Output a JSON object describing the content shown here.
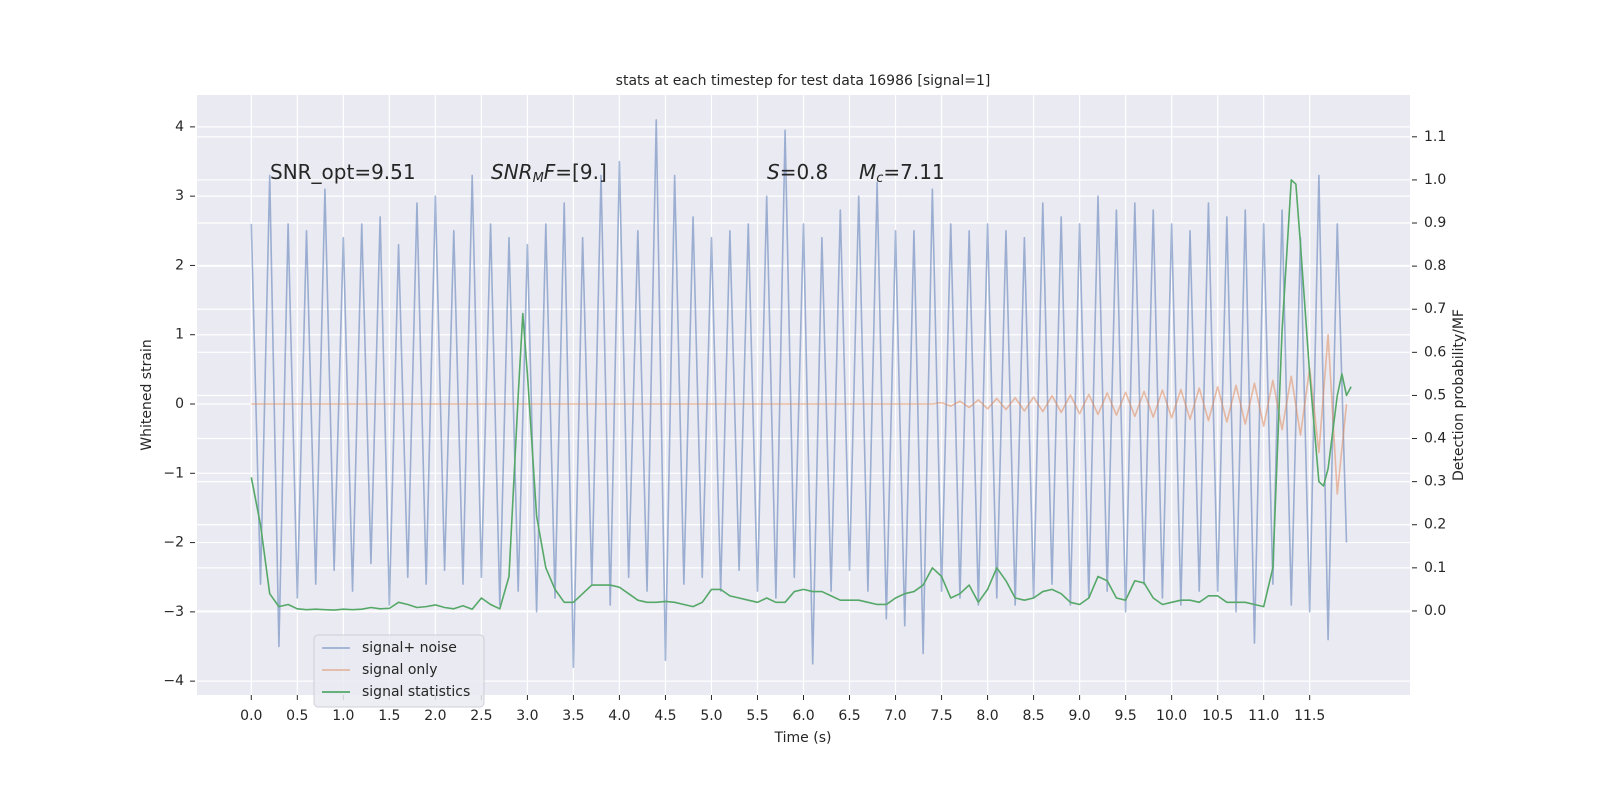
{
  "chart_data": {
    "type": "line",
    "title": "stats at each timestep for test data 16986 [signal=1]",
    "xlabel": "Time (s)",
    "ylabel": "Whitened strain",
    "y2label": "Detection probability/MF",
    "grid": true,
    "legend": "lower left",
    "x": [
      0,
      0.1,
      0.2,
      0.3,
      0.4,
      0.5,
      0.6,
      0.7,
      0.8,
      0.9,
      1.0,
      1.1,
      1.2,
      1.3,
      1.4,
      1.5,
      1.6,
      1.7,
      1.8,
      1.9,
      2.0,
      2.1,
      2.2,
      2.3,
      2.4,
      2.5,
      2.6,
      2.7,
      2.8,
      2.9,
      3.0,
      3.1,
      3.2,
      3.3,
      3.4,
      3.5,
      3.6,
      3.7,
      3.8,
      3.9,
      4.0,
      4.1,
      4.2,
      4.3,
      4.4,
      4.5,
      4.6,
      4.7,
      4.8,
      4.9,
      5.0,
      5.1,
      5.2,
      5.3,
      5.4,
      5.5,
      5.6,
      5.7,
      5.8,
      5.9,
      6.0,
      6.1,
      6.2,
      6.3,
      6.4,
      6.5,
      6.6,
      6.7,
      6.8,
      6.9,
      7.0,
      7.1,
      7.2,
      7.3,
      7.4,
      7.5,
      7.6,
      7.7,
      7.8,
      7.9,
      8.0,
      8.1,
      8.2,
      8.3,
      8.4,
      8.5,
      8.6,
      8.7,
      8.8,
      8.9,
      9.0,
      9.1,
      9.2,
      9.3,
      9.4,
      9.5,
      9.6,
      9.7,
      9.8,
      9.9,
      10.0,
      10.1,
      10.2,
      10.3,
      10.4,
      10.5,
      10.6,
      10.7,
      10.8,
      10.9,
      11.0,
      11.1,
      11.2,
      11.3,
      11.4,
      11.5,
      11.6,
      11.7,
      11.8,
      11.9
    ],
    "series": [
      {
        "name": "signal+ noise",
        "color": "#4c72b0",
        "opacity": 0.5,
        "values": [
          2.6,
          -2.6,
          3.3,
          -3.5,
          2.6,
          -2.8,
          2.5,
          -2.6,
          3.1,
          -2.4,
          2.4,
          -2.7,
          2.6,
          -2.3,
          2.7,
          -2.9,
          2.3,
          -2.5,
          2.9,
          -2.6,
          3.0,
          -2.4,
          2.5,
          -2.6,
          3.3,
          -2.5,
          2.6,
          -2.9,
          2.4,
          -2.7,
          2.3,
          -3.0,
          2.6,
          -2.8,
          2.9,
          -3.8,
          2.4,
          -2.6,
          3.3,
          -2.9,
          3.5,
          -2.5,
          2.5,
          -2.7,
          4.1,
          -3.7,
          3.3,
          -2.6,
          2.7,
          -2.5,
          2.4,
          -2.7,
          2.5,
          -2.4,
          2.6,
          -2.7,
          3.0,
          -2.8,
          3.95,
          -2.5,
          2.6,
          -3.75,
          2.4,
          -2.7,
          2.8,
          -2.4,
          3.0,
          -2.7,
          3.2,
          -3.1,
          2.5,
          -3.2,
          2.5,
          -3.6,
          3.1,
          -2.7,
          2.6,
          -2.8,
          2.5,
          -2.9,
          2.6,
          -2.8,
          2.5,
          -2.9,
          2.4,
          -2.8,
          2.9,
          -2.6,
          2.7,
          -2.9,
          2.6,
          -2.8,
          3.0,
          -2.7,
          2.8,
          -3.0,
          2.9,
          -2.6,
          2.8,
          -2.8,
          2.6,
          -2.9,
          2.5,
          -2.7,
          2.9,
          -2.7,
          2.7,
          -3.0,
          2.8,
          -3.45,
          2.6,
          -2.6,
          2.8,
          -2.9,
          2.4,
          -3.0,
          3.3,
          -3.4,
          2.6,
          -2.0
        ]
      },
      {
        "name": "signal only",
        "color": "#dd8452",
        "opacity": 0.5,
        "values": [
          0,
          0,
          0,
          0,
          0,
          0,
          0,
          0,
          0,
          0,
          0,
          0,
          0,
          0,
          0,
          0,
          0,
          0,
          0,
          0,
          0,
          0,
          0,
          0,
          0,
          0,
          0,
          0,
          0,
          0,
          0,
          0,
          0,
          0,
          0,
          0,
          0,
          0,
          0,
          0,
          0,
          0,
          0,
          0,
          0,
          0,
          0,
          0,
          0,
          0,
          0,
          0,
          0,
          0,
          0,
          0,
          0,
          0,
          0,
          0,
          0,
          0,
          0,
          0,
          0,
          0,
          0,
          0,
          0,
          0,
          0,
          0,
          0,
          0,
          0,
          0.02,
          -0.03,
          0.04,
          -0.05,
          0.06,
          -0.07,
          0.08,
          -0.08,
          0.09,
          -0.1,
          0.1,
          -0.11,
          0.12,
          -0.12,
          0.13,
          -0.14,
          0.14,
          -0.15,
          0.16,
          -0.16,
          0.17,
          -0.18,
          0.18,
          -0.19,
          0.2,
          -0.2,
          0.21,
          -0.22,
          0.23,
          -0.24,
          0.25,
          -0.26,
          0.27,
          -0.29,
          0.3,
          -0.32,
          0.34,
          -0.37,
          0.4,
          -0.45,
          0.52,
          -0.7,
          1.0,
          -1.3,
          0
        ]
      },
      {
        "name": "signal statistics",
        "color": "#55a868",
        "axis": "y2",
        "x": [
          0,
          0.1,
          0.2,
          0.3,
          0.4,
          0.5,
          0.6,
          0.7,
          0.8,
          0.9,
          1.0,
          1.1,
          1.2,
          1.3,
          1.4,
          1.5,
          1.6,
          1.7,
          1.8,
          1.9,
          2.0,
          2.1,
          2.2,
          2.3,
          2.4,
          2.5,
          2.6,
          2.7,
          2.8,
          2.9,
          2.95,
          3.0,
          3.1,
          3.2,
          3.3,
          3.4,
          3.5,
          3.6,
          3.7,
          3.8,
          3.9,
          4.0,
          4.1,
          4.2,
          4.3,
          4.4,
          4.5,
          4.6,
          4.7,
          4.8,
          4.9,
          5.0,
          5.1,
          5.2,
          5.3,
          5.4,
          5.5,
          5.6,
          5.7,
          5.8,
          5.9,
          6.0,
          6.1,
          6.2,
          6.3,
          6.4,
          6.5,
          6.6,
          6.7,
          6.8,
          6.9,
          7.0,
          7.1,
          7.2,
          7.3,
          7.4,
          7.5,
          7.6,
          7.7,
          7.8,
          7.9,
          8.0,
          8.1,
          8.2,
          8.3,
          8.4,
          8.5,
          8.6,
          8.7,
          8.8,
          8.9,
          9.0,
          9.1,
          9.2,
          9.3,
          9.4,
          9.5,
          9.6,
          9.7,
          9.8,
          9.9,
          10.0,
          10.1,
          10.2,
          10.3,
          10.4,
          10.5,
          10.6,
          10.7,
          10.8,
          10.9,
          11.0,
          11.1,
          11.2,
          11.3,
          11.35,
          11.4,
          11.5,
          11.6,
          11.65,
          11.7,
          11.8,
          11.85,
          11.9,
          11.95
        ],
        "values": [
          0.31,
          0.2,
          0.04,
          0.01,
          0.015,
          0.005,
          0.003,
          0.004,
          0.003,
          0.002,
          0.004,
          0.003,
          0.004,
          0.008,
          0.005,
          0.006,
          0.02,
          0.015,
          0.008,
          0.01,
          0.014,
          0.008,
          0.005,
          0.012,
          0.004,
          0.03,
          0.015,
          0.005,
          0.08,
          0.5,
          0.69,
          0.55,
          0.22,
          0.1,
          0.05,
          0.02,
          0.02,
          0.04,
          0.06,
          0.06,
          0.06,
          0.055,
          0.04,
          0.025,
          0.02,
          0.02,
          0.022,
          0.02,
          0.015,
          0.01,
          0.02,
          0.05,
          0.05,
          0.035,
          0.03,
          0.025,
          0.02,
          0.03,
          0.02,
          0.02,
          0.045,
          0.05,
          0.045,
          0.045,
          0.035,
          0.025,
          0.025,
          0.025,
          0.02,
          0.015,
          0.015,
          0.03,
          0.04,
          0.045,
          0.06,
          0.1,
          0.08,
          0.03,
          0.04,
          0.06,
          0.02,
          0.05,
          0.1,
          0.07,
          0.03,
          0.025,
          0.03,
          0.045,
          0.05,
          0.04,
          0.02,
          0.015,
          0.03,
          0.08,
          0.07,
          0.03,
          0.025,
          0.07,
          0.065,
          0.03,
          0.015,
          0.02,
          0.025,
          0.025,
          0.02,
          0.035,
          0.035,
          0.02,
          0.02,
          0.02,
          0.015,
          0.01,
          0.1,
          0.65,
          1.0,
          0.99,
          0.85,
          0.55,
          0.3,
          0.29,
          0.33,
          0.5,
          0.55,
          0.5,
          0.52
        ]
      }
    ],
    "xlim": [
      -0.59,
      12.59
    ],
    "ylim": [
      -4.2,
      4.46
    ],
    "y2lim": [
      -0.195,
      1.197
    ],
    "xticks": [
      {
        "value": 0,
        "label": "0.0"
      },
      0.5,
      {
        "value": 1,
        "label": "1.0"
      },
      1.5,
      {
        "value": 2,
        "label": "2.0"
      },
      2.5,
      {
        "value": 3,
        "label": "3.0"
      },
      3.5,
      {
        "value": 4,
        "label": "4.0"
      },
      4.5,
      {
        "value": 5,
        "label": "5.0"
      },
      5.5,
      {
        "value": 6,
        "label": "6.0"
      },
      6.5,
      {
        "value": 7,
        "label": "7.0"
      },
      7.5,
      {
        "value": 8,
        "label": "8.0"
      },
      8.5,
      {
        "value": 9,
        "label": "9.0"
      },
      9.5,
      {
        "value": 10,
        "label": "10.0"
      },
      10.5,
      {
        "value": 11,
        "label": "11.0"
      },
      11.5
    ],
    "yticks": [
      {
        "value": -4,
        "label": "−4"
      },
      {
        "value": -3,
        "label": "−3"
      },
      {
        "value": -2,
        "label": "−2"
      },
      {
        "value": -1,
        "label": "−1"
      },
      0,
      1,
      2,
      3,
      4
    ],
    "y2ticks": [
      {
        "value": 0,
        "label": "0.0"
      },
      0.1,
      0.2,
      0.3,
      0.4,
      0.5,
      0.6,
      0.7,
      0.8,
      0.9,
      {
        "value": 1,
        "label": "1.0"
      },
      1.1
    ],
    "annotations": [
      {
        "parts": [
          {
            "text": "SNR_opt=9.51"
          }
        ]
      },
      {
        "parts": [
          {
            "text": "SNR",
            "italic": true
          },
          {
            "text": "M",
            "italic": true,
            "sub": true
          },
          {
            "text": "F",
            "italic": true
          },
          {
            "text": "=[9.]"
          }
        ]
      },
      {
        "parts": [
          {
            "text": "S",
            "italic": true
          },
          {
            "text": "=0.8"
          }
        ]
      },
      {
        "parts": [
          {
            "text": "M",
            "italic": true
          },
          {
            "text": "c",
            "italic": true,
            "sub": true
          },
          {
            "text": "=7.11"
          }
        ]
      }
    ]
  }
}
